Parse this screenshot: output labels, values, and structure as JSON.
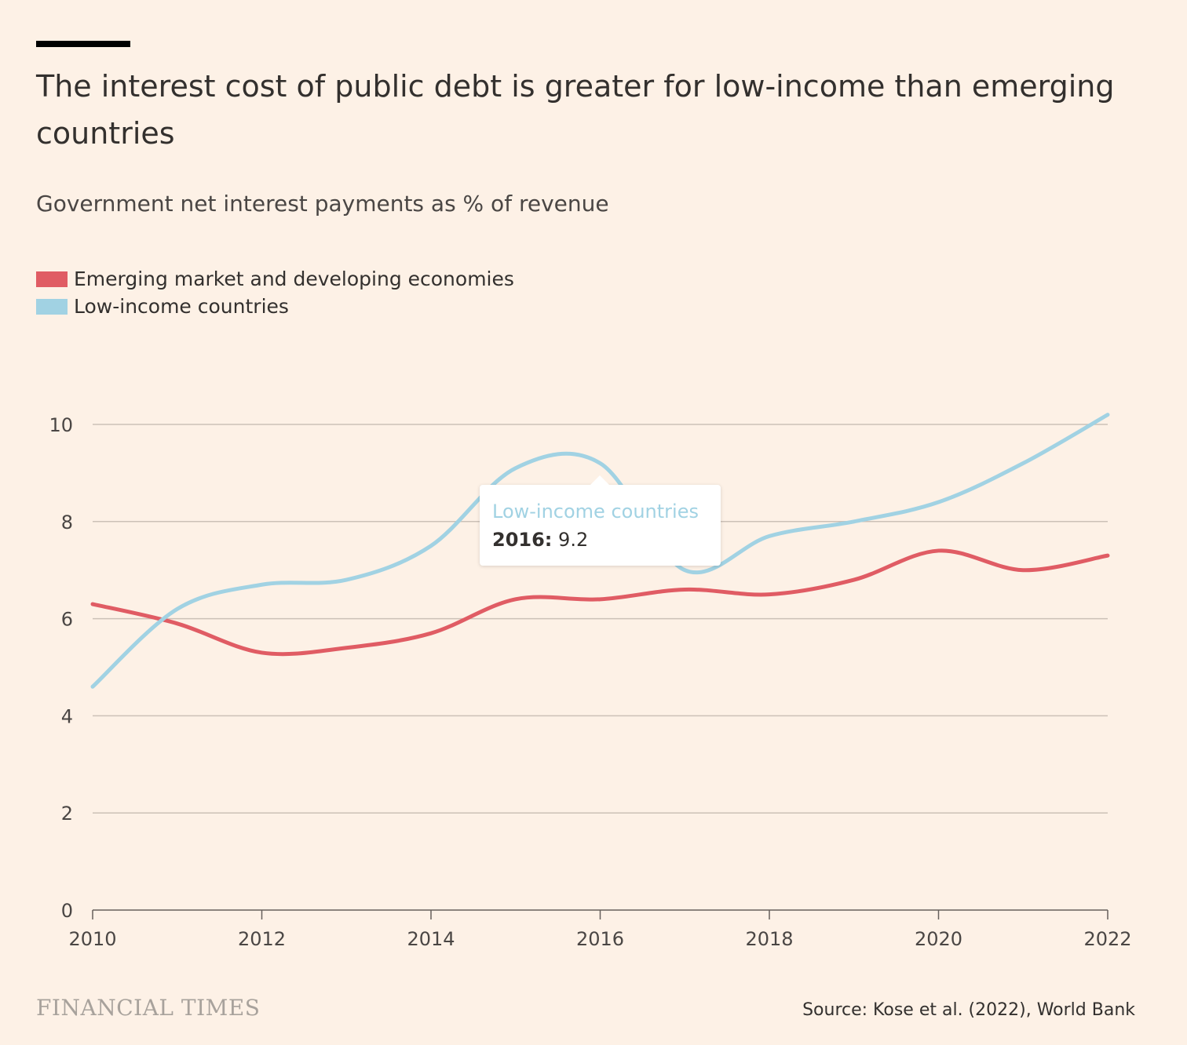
{
  "header": {
    "title": "The interest cost of public debt is greater for low-income than emerging countries",
    "subtitle": "Government net interest payments as % of revenue"
  },
  "legend": [
    {
      "label": "Emerging market and developing economies",
      "color": "#e05c64"
    },
    {
      "label": "Low-income countries",
      "color": "#a1d2e3"
    }
  ],
  "tooltip": {
    "series": "Low-income countries",
    "year": "2016:",
    "value": "9.2"
  },
  "footer": {
    "brand": "FINANCIAL TIMES",
    "source": "Source: Kose et al. (2022), World Bank"
  },
  "chart_data": {
    "type": "line",
    "title": "The interest cost of public debt is greater for low-income than emerging countries",
    "subtitle": "Government net interest payments as % of revenue",
    "x": [
      2010,
      2011,
      2012,
      2013,
      2014,
      2015,
      2016,
      2017,
      2018,
      2019,
      2020,
      2021,
      2022
    ],
    "xticks": [
      2010,
      2012,
      2014,
      2016,
      2018,
      2020,
      2022
    ],
    "yticks": [
      0,
      2,
      4,
      6,
      8,
      10
    ],
    "xlim": [
      2010,
      2022
    ],
    "ylim": [
      0,
      10
    ],
    "grid": true,
    "legend_position": "top-left",
    "series": [
      {
        "name": "Emerging market and developing economies",
        "color": "#e05c64",
        "values": [
          6.3,
          5.9,
          5.3,
          5.4,
          5.7,
          6.4,
          6.4,
          6.6,
          6.5,
          6.8,
          7.4,
          7.0,
          7.3
        ]
      },
      {
        "name": "Low-income countries",
        "color": "#a1d2e3",
        "values": [
          4.6,
          6.2,
          6.7,
          6.8,
          7.5,
          9.1,
          9.2,
          7.0,
          7.7,
          8.0,
          8.4,
          9.2,
          10.2
        ]
      }
    ]
  }
}
